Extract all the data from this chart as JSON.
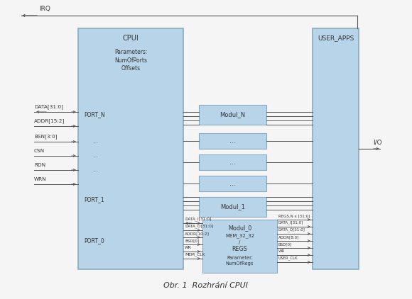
{
  "bg_color": "#f5f5f5",
  "box_fill": "#b8d4e8",
  "box_edge": "#8aaabf",
  "title": "Obr. 1  Rozhrání CPUI",
  "left_signals": [
    "DATA[31:0]",
    "ADDR[15:2]",
    "BSN[3:0]",
    "CSN",
    "RDN",
    "WRN"
  ],
  "p0_sigs_left": [
    "DATA_I[31:0]",
    "DATA_O[31:0]",
    "ADDR[10:2]",
    "BSD[0]",
    "WR",
    "MEM_CLK"
  ],
  "p0_sigs_right": [
    "REGS.N x [31:0]",
    "DATA_I[31:0]",
    "DATA_O[31:0]",
    "ADDR[8:0]",
    "BSD[0]",
    "WR",
    "USER_CLK"
  ],
  "irq_label": "IRQ",
  "io_label": "I/O"
}
